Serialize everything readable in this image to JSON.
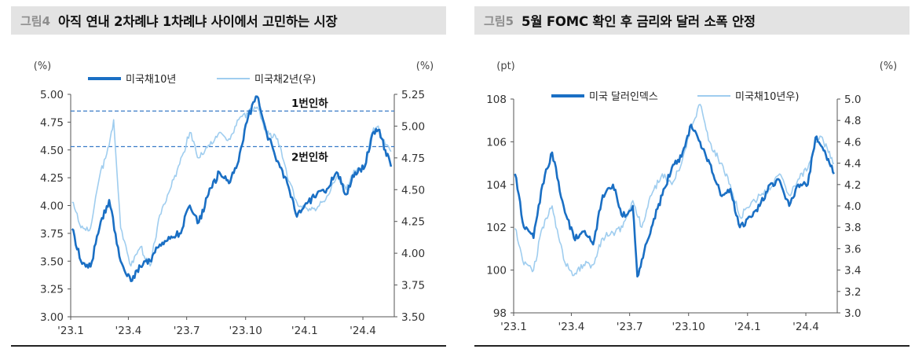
{
  "charts": [
    {
      "tag": "그림4",
      "title": "아직 연내 2차례냐 1차례냐 사이에서 고민하는 시장",
      "left_unit": "(%)",
      "right_unit": "(%)"
    },
    {
      "tag": "그림5",
      "title": "5월 FOMC 확인 후 금리와 달러 소폭 안정",
      "left_unit": "(pt)",
      "right_unit": "(%)"
    }
  ],
  "chart_data": [
    {
      "type": "line",
      "title": "아직 연내 2차례냐 1차례냐 사이에서 고민하는 시장",
      "x_labels": [
        "'23.1",
        "'23.4",
        "'23.7",
        "'23.10",
        "'24.1",
        "'24.4"
      ],
      "x_range": [
        "2023-01-01",
        "2024-05-20"
      ],
      "y_left": {
        "unit": "(%)",
        "ylim": [
          3.0,
          5.0
        ],
        "ticks": [
          "3.00",
          "3.25",
          "3.50",
          "3.75",
          "4.00",
          "4.25",
          "4.50",
          "4.75",
          "5.00"
        ]
      },
      "y_right": {
        "unit": "(%)",
        "ylim": [
          3.5,
          5.25
        ],
        "ticks": [
          "3.50",
          "3.75",
          "4.00",
          "4.25",
          "4.50",
          "4.75",
          "5.00",
          "5.25"
        ]
      },
      "legend_position": "top",
      "series": [
        {
          "name": "미국채10년",
          "axis": "left",
          "color": "#1a6fc4",
          "x": [
            "2023-01-03",
            "2023-01-17",
            "2023-02-01",
            "2023-02-15",
            "2023-03-02",
            "2023-03-20",
            "2023-04-05",
            "2023-04-20",
            "2023-05-05",
            "2023-05-20",
            "2023-06-05",
            "2023-06-20",
            "2023-07-06",
            "2023-07-20",
            "2023-08-04",
            "2023-08-21",
            "2023-09-05",
            "2023-09-20",
            "2023-10-05",
            "2023-10-19",
            "2023-11-03",
            "2023-11-20",
            "2023-12-05",
            "2023-12-20",
            "2024-01-05",
            "2024-01-20",
            "2024-02-05",
            "2024-02-20",
            "2024-03-06",
            "2024-03-20",
            "2024-04-04",
            "2024-04-16",
            "2024-04-25",
            "2024-05-06",
            "2024-05-15"
          ],
          "values": [
            3.79,
            3.5,
            3.45,
            3.8,
            4.05,
            3.5,
            3.32,
            3.45,
            3.5,
            3.65,
            3.7,
            3.75,
            4.0,
            3.85,
            4.1,
            4.3,
            4.2,
            4.4,
            4.8,
            4.98,
            4.65,
            4.4,
            4.2,
            3.9,
            4.02,
            4.1,
            4.15,
            4.3,
            4.1,
            4.3,
            4.35,
            4.65,
            4.68,
            4.5,
            4.35
          ]
        },
        {
          "name": "미국채2년(우)",
          "axis": "right",
          "color": "#9fcdef",
          "x": [
            "2023-01-03",
            "2023-01-17",
            "2023-02-01",
            "2023-02-15",
            "2023-03-02",
            "2023-03-09",
            "2023-03-20",
            "2023-04-05",
            "2023-04-20",
            "2023-05-05",
            "2023-05-20",
            "2023-06-05",
            "2023-06-20",
            "2023-07-06",
            "2023-07-20",
            "2023-08-04",
            "2023-08-21",
            "2023-09-05",
            "2023-09-20",
            "2023-10-05",
            "2023-10-19",
            "2023-11-03",
            "2023-11-20",
            "2023-12-05",
            "2023-12-20",
            "2024-01-05",
            "2024-01-20",
            "2024-02-05",
            "2024-02-20",
            "2024-03-06",
            "2024-03-20",
            "2024-04-04",
            "2024-04-16",
            "2024-04-25",
            "2024-05-06",
            "2024-05-15"
          ],
          "values": [
            4.4,
            4.2,
            4.2,
            4.6,
            4.85,
            5.05,
            4.2,
            3.9,
            4.05,
            3.9,
            4.3,
            4.5,
            4.7,
            4.95,
            4.75,
            4.85,
            4.95,
            4.9,
            5.05,
            5.1,
            5.15,
            4.95,
            4.9,
            4.6,
            4.4,
            4.35,
            4.35,
            4.45,
            4.6,
            4.5,
            4.65,
            4.7,
            4.95,
            5.0,
            4.85,
            4.8
          ]
        }
      ],
      "reference_lines": [
        {
          "label": "1번인하",
          "axis": "left",
          "value": 4.85
        },
        {
          "label": "2번인하",
          "axis": "left",
          "value": 4.53
        }
      ]
    },
    {
      "type": "line",
      "title": "5월 FOMC 확인 후 금리와 달러 소폭 안정",
      "x_labels": [
        "'23.1",
        "'23.4",
        "'23.7",
        "'23.10",
        "'24.1",
        "'24.4"
      ],
      "x_range": [
        "2023-01-01",
        "2024-05-20"
      ],
      "y_left": {
        "unit": "(pt)",
        "ylim": [
          98,
          108
        ],
        "ticks": [
          "98",
          "100",
          "102",
          "104",
          "106",
          "108"
        ]
      },
      "y_right": {
        "unit": "(%)",
        "ylim": [
          3.0,
          5.0
        ],
        "ticks": [
          "3.0",
          "3.2",
          "3.4",
          "3.6",
          "3.8",
          "4.0",
          "4.2",
          "4.4",
          "4.6",
          "4.8",
          "5.0"
        ]
      },
      "legend_position": "top",
      "series": [
        {
          "name": "미국 달러인덱스",
          "axis": "left",
          "color": "#1a6fc4",
          "x": [
            "2023-01-03",
            "2023-01-17",
            "2023-02-01",
            "2023-02-15",
            "2023-03-02",
            "2023-03-20",
            "2023-04-05",
            "2023-04-20",
            "2023-05-05",
            "2023-05-20",
            "2023-06-05",
            "2023-06-20",
            "2023-07-06",
            "2023-07-13",
            "2023-07-20",
            "2023-08-04",
            "2023-08-21",
            "2023-09-05",
            "2023-09-20",
            "2023-10-05",
            "2023-10-19",
            "2023-11-03",
            "2023-11-20",
            "2023-12-05",
            "2023-12-20",
            "2024-01-05",
            "2024-01-20",
            "2024-02-05",
            "2024-02-20",
            "2024-03-06",
            "2024-03-20",
            "2024-04-04",
            "2024-04-16",
            "2024-04-25",
            "2024-05-06",
            "2024-05-15"
          ],
          "values": [
            104.5,
            102.0,
            101.5,
            104.0,
            105.5,
            103.0,
            101.5,
            101.8,
            101.2,
            103.5,
            104.0,
            102.5,
            103.0,
            99.7,
            100.5,
            102.0,
            103.5,
            104.8,
            105.3,
            106.8,
            106.0,
            105.0,
            103.5,
            103.8,
            102.0,
            102.5,
            103.0,
            104.0,
            104.2,
            103.0,
            104.0,
            104.0,
            106.2,
            105.8,
            105.2,
            104.5
          ]
        },
        {
          "name": "미국채10년우)",
          "axis": "right",
          "color": "#9fcdef",
          "x": [
            "2023-01-03",
            "2023-01-17",
            "2023-02-01",
            "2023-02-15",
            "2023-03-02",
            "2023-03-20",
            "2023-04-05",
            "2023-04-20",
            "2023-05-05",
            "2023-05-20",
            "2023-06-05",
            "2023-06-20",
            "2023-07-06",
            "2023-07-20",
            "2023-08-04",
            "2023-08-21",
            "2023-09-05",
            "2023-09-20",
            "2023-10-05",
            "2023-10-19",
            "2023-11-03",
            "2023-11-20",
            "2023-12-05",
            "2023-12-20",
            "2024-01-05",
            "2024-01-20",
            "2024-02-05",
            "2024-02-20",
            "2024-03-06",
            "2024-03-20",
            "2024-04-04",
            "2024-04-16",
            "2024-04-25",
            "2024-05-06",
            "2024-05-15"
          ],
          "values": [
            3.79,
            3.45,
            3.4,
            3.8,
            4.0,
            3.5,
            3.35,
            3.45,
            3.45,
            3.7,
            3.75,
            3.8,
            4.05,
            3.8,
            4.1,
            4.3,
            4.2,
            4.4,
            4.75,
            4.95,
            4.6,
            4.4,
            4.2,
            3.9,
            4.0,
            4.1,
            4.15,
            4.3,
            4.1,
            4.25,
            4.35,
            4.6,
            4.65,
            4.5,
            4.4
          ]
        }
      ]
    }
  ]
}
